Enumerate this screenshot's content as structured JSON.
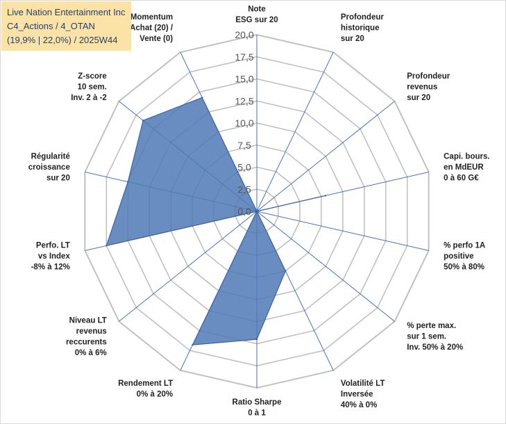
{
  "info": {
    "line1": "Live Nation Entertainment Inc",
    "line2": "C4_Actions / 4_OTAN",
    "line3": "(19,9% | 22,0%) / 2025W44"
  },
  "colors": {
    "fill": "#4f79b5",
    "stroke": "#3a62a0",
    "grid": "#c0c0c0",
    "spoke": "#4472c4",
    "info_bg": "#fbe3a8",
    "info_text": "#1f3f7a"
  },
  "chart_data": {
    "type": "radar",
    "title": "",
    "rmin": 0,
    "rmax": 20,
    "tick_step": 2.5,
    "tick_labels": [
      "0,0",
      "2,5",
      "5,0",
      "7,5",
      "10,0",
      "12,5",
      "15,0",
      "17,5",
      "20,0"
    ],
    "axes": [
      {
        "label": [
          "Note",
          "ESG sur 20"
        ],
        "value": 0
      },
      {
        "label": [
          "Profondeur",
          "historique",
          "sur 20"
        ],
        "value": 0
      },
      {
        "label": [
          "Profondeur",
          "revenus",
          "sur 20"
        ],
        "value": 0
      },
      {
        "label": [
          "Capi. bours.",
          "en MdEUR",
          "0 à 60 G€"
        ],
        "value": 8
      },
      {
        "label": [
          "% perfo 1A",
          "positive",
          "50% à 80%"
        ],
        "value": 0
      },
      {
        "label": [
          "% perte max.",
          "sur 1 sem.",
          "Inv. 50% à 20%"
        ],
        "value": 0
      },
      {
        "label": [
          "Volatilité LT",
          "Inversée",
          "40% à 0%"
        ],
        "value": 7.5
      },
      {
        "label": [
          "Ratio Sharpe",
          "0 à 1"
        ],
        "value": 14.5
      },
      {
        "label": [
          "Rendement LT",
          "0% à 20%"
        ],
        "value": 16.8
      },
      {
        "label": [
          "Niveau LT",
          "revenus",
          "reccurents",
          "0% à 6%"
        ],
        "value": 0
      },
      {
        "label": [
          "Perfo. LT",
          "vs Index",
          "-8% à 12%"
        ],
        "value": 17.5
      },
      {
        "label": [
          "Régularité",
          "croissance",
          "sur 20"
        ],
        "value": 15
      },
      {
        "label": [
          "Z-score",
          "10 sem.",
          "Inv. 2 à -2"
        ],
        "value": 16.5
      },
      {
        "label": [
          "Momentum",
          "Achat (20) /",
          "Vente (0)"
        ],
        "value": 14.3
      }
    ]
  }
}
